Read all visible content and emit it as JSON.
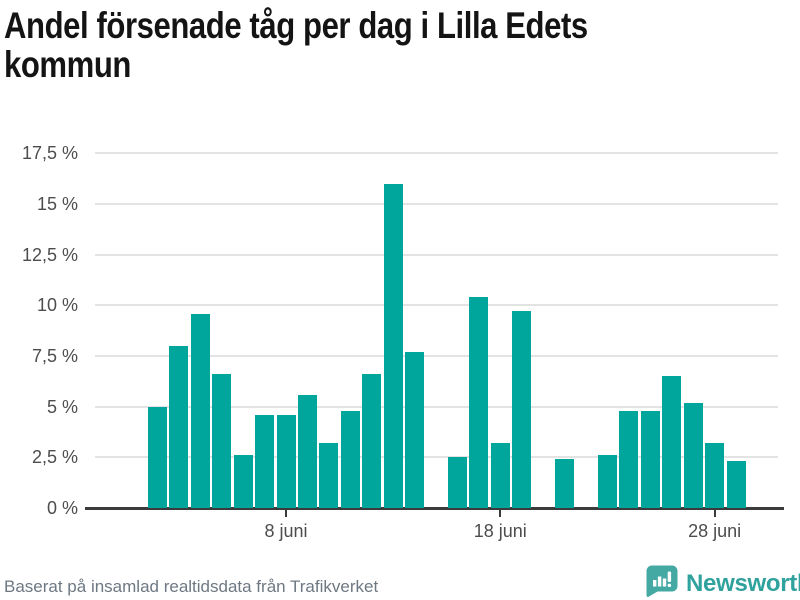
{
  "title": {
    "full": "Andel försenade tåg per dag i Lilla Edets kommun",
    "lines": [
      "Andel försenade tåg per dag i Lilla Edets",
      "kommun"
    ]
  },
  "footer": {
    "source_text": "Baserat på insamlad realtidsdata från Trafikverket",
    "brand_name": "Newsworthy"
  },
  "colors": {
    "bar": "#00A59B",
    "brand_teal": "#2fa29d",
    "brand_bubble": "#44A8A3",
    "grid": "#e3e3e3",
    "axis": "#3b3b3b",
    "tick_text": "#4d4d4d",
    "title_text": "#141414",
    "footer_text": "#6e7883"
  },
  "chart_data": {
    "type": "bar",
    "title": "Andel försenade tåg per dag i Lilla Edets kommun",
    "xlabel": "",
    "ylabel": "",
    "unit": "%",
    "ylim": [
      0,
      17.5
    ],
    "grid": "horizontal",
    "legend": "none",
    "y_ticks": [
      {
        "value": 0,
        "label": "0 %"
      },
      {
        "value": 2.5,
        "label": "2,5 %"
      },
      {
        "value": 5,
        "label": "5 %"
      },
      {
        "value": 7.5,
        "label": "7,5 %"
      },
      {
        "value": 10,
        "label": "10 %"
      },
      {
        "value": 12.5,
        "label": "12,5 %"
      },
      {
        "value": 15,
        "label": "15 %"
      },
      {
        "value": 17.5,
        "label": "17,5 %"
      }
    ],
    "x_ticks": [
      {
        "day": 8,
        "label": "8 juni"
      },
      {
        "day": 18,
        "label": "18 juni"
      },
      {
        "day": 28,
        "label": "28 juni"
      }
    ],
    "days": [
      {
        "day": 2,
        "label": "2 juni",
        "value": 5.0
      },
      {
        "day": 3,
        "label": "3 juni",
        "value": 8.0
      },
      {
        "day": 4,
        "label": "4 juni",
        "value": 9.6
      },
      {
        "day": 5,
        "label": "5 juni",
        "value": 6.6
      },
      {
        "day": 6,
        "label": "6 juni",
        "value": 2.6
      },
      {
        "day": 7,
        "label": "7 juni",
        "value": 4.6
      },
      {
        "day": 8,
        "label": "8 juni",
        "value": 4.6
      },
      {
        "day": 9,
        "label": "9 juni",
        "value": 5.6
      },
      {
        "day": 10,
        "label": "10 juni",
        "value": 3.2
      },
      {
        "day": 11,
        "label": "11 juni",
        "value": 4.8
      },
      {
        "day": 12,
        "label": "12 juni",
        "value": 6.6
      },
      {
        "day": 13,
        "label": "13 juni",
        "value": 16.0
      },
      {
        "day": 14,
        "label": "14 juni",
        "value": 7.7
      },
      {
        "day": 15,
        "label": "15 juni",
        "value": null
      },
      {
        "day": 16,
        "label": "16 juni",
        "value": 2.5
      },
      {
        "day": 17,
        "label": "17 juni",
        "value": 10.4
      },
      {
        "day": 18,
        "label": "18 juni",
        "value": 3.2
      },
      {
        "day": 19,
        "label": "19 juni",
        "value": 9.7
      },
      {
        "day": 20,
        "label": "20 juni",
        "value": null
      },
      {
        "day": 21,
        "label": "21 juni",
        "value": 2.4
      },
      {
        "day": 22,
        "label": "22 juni",
        "value": null
      },
      {
        "day": 23,
        "label": "23 juni",
        "value": 2.6
      },
      {
        "day": 24,
        "label": "24 juni",
        "value": 4.8
      },
      {
        "day": 25,
        "label": "25 juni",
        "value": 4.8
      },
      {
        "day": 26,
        "label": "26 juni",
        "value": 6.5
      },
      {
        "day": 27,
        "label": "27 juni",
        "value": 5.2
      },
      {
        "day": 28,
        "label": "28 juni",
        "value": 3.2
      },
      {
        "day": 29,
        "label": "29 juni",
        "value": 2.3
      }
    ]
  }
}
